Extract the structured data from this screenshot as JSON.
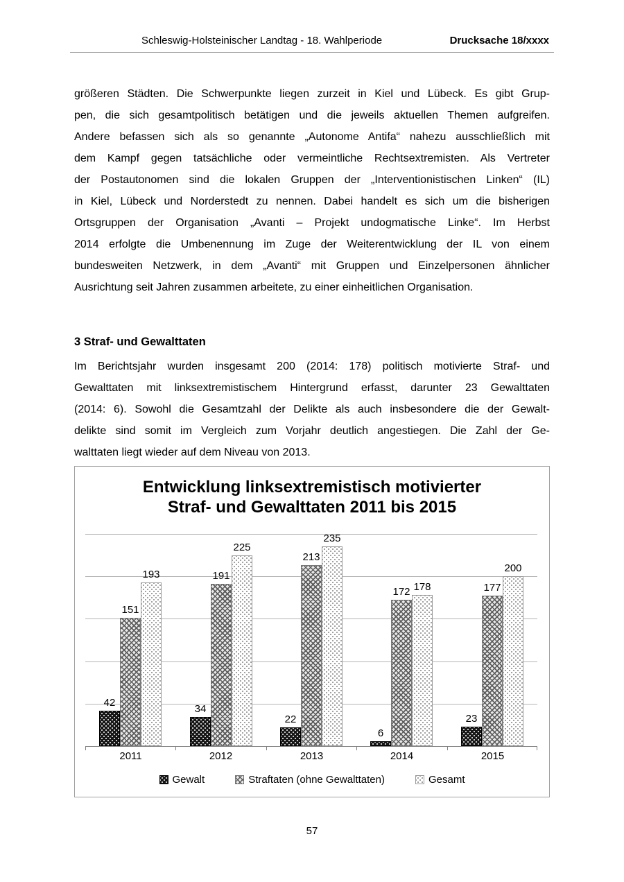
{
  "header": {
    "title": "Schleswig-Holsteinischer Landtag - 18. Wahlperiode",
    "doc_number": "Drucksache 18/xxxx"
  },
  "paragraphs": {
    "p1_lines": [
      "größeren Städten. Die Schwerpunkte liegen zurzeit in Kiel und Lübeck. Es gibt Grup-",
      "pen, die sich gesamtpolitisch betätigen und die jeweils aktuellen Themen aufgreifen.",
      "Andere befassen sich als so genannte „Autonome Antifa“ nahezu ausschließlich mit",
      "dem Kampf gegen tatsächliche oder vermeintliche Rechtsextremisten. Als Vertreter",
      "der Postautonomen sind die lokalen Gruppen der „Interventionistischen Linken“ (IL)",
      "in Kiel, Lübeck und Norderstedt zu nennen. Dabei handelt es sich um die bisherigen",
      "Ortsgruppen der Organisation „Avanti – Projekt undogmatische Linke“. Im Herbst",
      "2014 erfolgte die Umbenennung im Zuge der Weiterentwicklung der IL von einem",
      "bundesweiten Netzwerk, in dem „Avanti“ mit Gruppen und Einzelpersonen ähnlicher",
      "Ausrichtung seit Jahren zusammen arbeitete, zu einer einheitlichen Organisation."
    ],
    "heading": "3 Straf- und Gewalttaten",
    "p2_lines": [
      "Im Berichtsjahr wurden insgesamt 200 (2014: 178) politisch motivierte Straf- und",
      "Gewalttaten mit linksextremistischem Hintergrund erfasst, darunter 23 Gewalttaten",
      "(2014: 6). Sowohl die Gesamtzahl der Delikte als auch insbesondere die der Gewalt-",
      "delikte sind somit im Vergleich zum Vorjahr deutlich angestiegen. Die Zahl der Ge-",
      "walttaten liegt wieder auf dem Niveau von 2013."
    ]
  },
  "chart_data": {
    "type": "bar",
    "title_lines": [
      "Entwicklung linksextremistisch motivierter",
      "Straf- und Gewalttaten 2011 bis 2015"
    ],
    "categories": [
      "2011",
      "2012",
      "2013",
      "2014",
      "2015"
    ],
    "series": [
      {
        "name": "Gewalt",
        "pattern": "black-dots",
        "values": [
          42,
          34,
          22,
          6,
          23
        ]
      },
      {
        "name": "Straftaten (ohne Gewalttaten)",
        "pattern": "gray-crosshatch",
        "values": [
          151,
          191,
          213,
          172,
          177
        ]
      },
      {
        "name": "Gesamt",
        "pattern": "light-dots",
        "values": [
          193,
          225,
          235,
          178,
          200
        ]
      }
    ],
    "ylim": [
      0,
      250
    ],
    "grid_step": 50,
    "grid": true,
    "data_labels": true,
    "legend_position": "bottom",
    "colors": {
      "gridline": "#b3b3b3",
      "axis": "#808080",
      "text": "#000000"
    }
  },
  "footer": {
    "page_number": "57"
  }
}
